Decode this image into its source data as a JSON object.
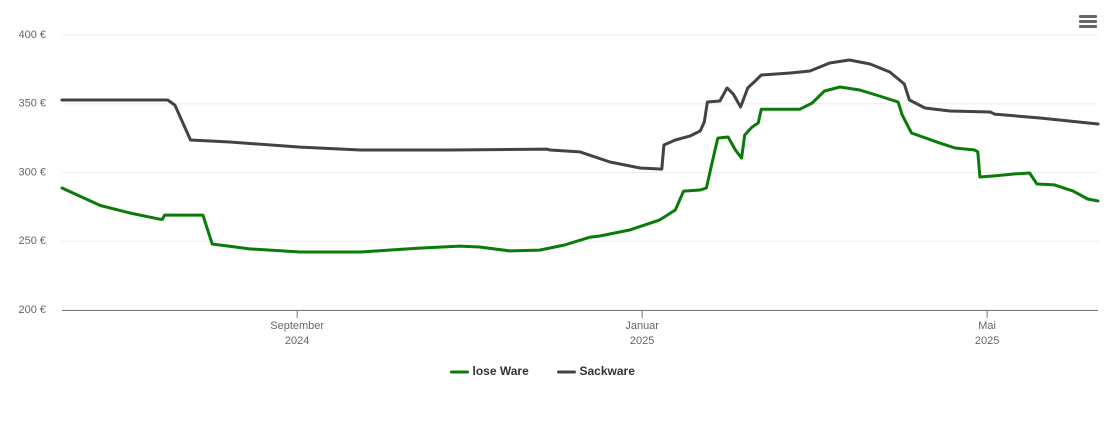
{
  "chart_data": {
    "type": "line",
    "ylim": [
      200,
      400
    ],
    "yticks": [
      {
        "value": 200,
        "label": "200 €"
      },
      {
        "value": 250,
        "label": "250 €"
      },
      {
        "value": 300,
        "label": "300 €"
      },
      {
        "value": 350,
        "label": "350 €"
      },
      {
        "value": 400,
        "label": "400 €"
      }
    ],
    "xlim": [
      2024.44,
      2025.44
    ],
    "xticks": [
      {
        "value": 2024.667,
        "label": [
          "September",
          "2024"
        ]
      },
      {
        "value": 2025.0,
        "label": [
          "Januar",
          "2025"
        ]
      },
      {
        "value": 2025.333,
        "label": [
          "Mai",
          "2025"
        ]
      }
    ],
    "grid": true,
    "legend": "bottom",
    "series": [
      {
        "name": "lose Ware",
        "color": "#0a7a0a",
        "x": [
          2024.44,
          2024.477,
          2024.506,
          2024.535,
          2024.537,
          2024.539,
          2024.576,
          2024.585,
          2024.621,
          2024.67,
          2024.728,
          2024.785,
          2024.824,
          2024.843,
          2024.872,
          2024.901,
          2024.925,
          2024.95,
          2024.959,
          2024.988,
          2025.017,
          2025.032,
          2025.04,
          2025.056,
          2025.062,
          2025.067,
          2025.073,
          2025.083,
          2025.09,
          2025.096,
          2025.099,
          2025.106,
          2025.112,
          2025.115,
          2025.152,
          2025.164,
          2025.176,
          2025.191,
          2025.21,
          2025.229,
          2025.247,
          2025.251,
          2025.26,
          2025.287,
          2025.302,
          2025.321,
          2025.324,
          2025.326,
          2025.34,
          2025.36,
          2025.374,
          2025.381,
          2025.398,
          2025.416,
          2025.43,
          2025.44
        ],
        "values": [
          288.7,
          276,
          270.5,
          266,
          266,
          269,
          269,
          248,
          244.4,
          242.2,
          242.2,
          245,
          246.5,
          245.8,
          243,
          243.6,
          247.3,
          253,
          253.8,
          258.2,
          265.5,
          272.7,
          286.5,
          287.3,
          288.7,
          305.5,
          325,
          325.8,
          316.4,
          310.5,
          327.3,
          333,
          336,
          346,
          346,
          350.5,
          359.3,
          362.2,
          360,
          355.6,
          351.3,
          341.8,
          328.7,
          321.5,
          317.8,
          316.4,
          315,
          296.7,
          297.5,
          299,
          299.6,
          291.6,
          291,
          286.5,
          280.7,
          279.3
        ]
      },
      {
        "name": "Sackware",
        "color": "#434343",
        "x": [
          2024.44,
          2024.542,
          2024.549,
          2024.564,
          2024.602,
          2024.67,
          2024.728,
          2024.814,
          2024.908,
          2024.911,
          2024.94,
          2024.969,
          2024.998,
          2025.019,
          2025.021,
          2025.032,
          2025.046,
          2025.056,
          2025.06,
          2025.063,
          2025.075,
          2025.082,
          2025.088,
          2025.095,
          2025.102,
          2025.109,
          2025.115,
          2025.143,
          2025.162,
          2025.181,
          2025.2,
          2025.22,
          2025.239,
          2025.253,
          2025.258,
          2025.273,
          2025.297,
          2025.336,
          2025.34,
          2025.384,
          2025.44
        ],
        "values": [
          352.7,
          352.7,
          349,
          323.6,
          322.2,
          318.5,
          316.4,
          316.4,
          317,
          316.4,
          315,
          307.6,
          303.3,
          302.5,
          320,
          323.6,
          326.5,
          330.2,
          336.7,
          351.3,
          352,
          361.5,
          357,
          347.6,
          361.5,
          366.5,
          370.9,
          372.4,
          373.8,
          379.6,
          381.8,
          378.9,
          373.1,
          364.4,
          352.7,
          346.9,
          344.7,
          344,
          342.5,
          339.6,
          335.3
        ]
      }
    ]
  }
}
